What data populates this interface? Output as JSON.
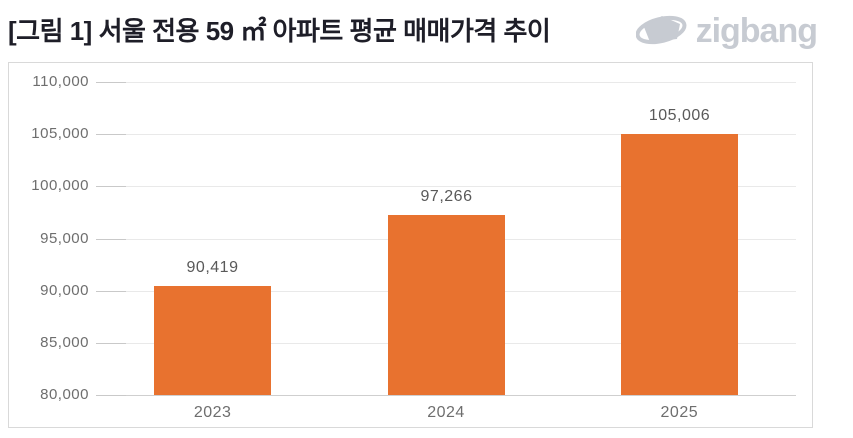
{
  "title": "[그림 1] 서울 전용 59 ㎡ 아파트 평균 매매가격 추이",
  "logo": {
    "text": "zigbang",
    "color": "#c7cbd2"
  },
  "colors": {
    "bar": "#e8722f",
    "gridline": "#e9e9e9",
    "axis_line": "#cfcfcf",
    "tick": "#c9c9c9",
    "axis_text": "#6e6e6e",
    "value_text": "#595959",
    "title_text": "#1e1e28",
    "panel_border": "#d9d9d9"
  },
  "chart_data": {
    "type": "bar",
    "title": "[그림 1] 서울 전용 59 ㎡ 아파트 평균 매매가격 추이",
    "categories": [
      "2023",
      "2024",
      "2025"
    ],
    "values": [
      90419,
      97266,
      105006
    ],
    "data_labels": [
      "90,419",
      "97,266",
      "105,006"
    ],
    "xlabel": "",
    "ylabel": "",
    "ylim": [
      80000,
      110000
    ],
    "ytick_values": [
      80000,
      85000,
      90000,
      95000,
      100000,
      105000,
      110000
    ],
    "ytick_labels": [
      "80,000",
      "85,000",
      "90,000",
      "95,000",
      "100,000",
      "105,000",
      "110,000"
    ],
    "grid": true,
    "legend_position": "none",
    "bar_color": "#e8722f"
  }
}
